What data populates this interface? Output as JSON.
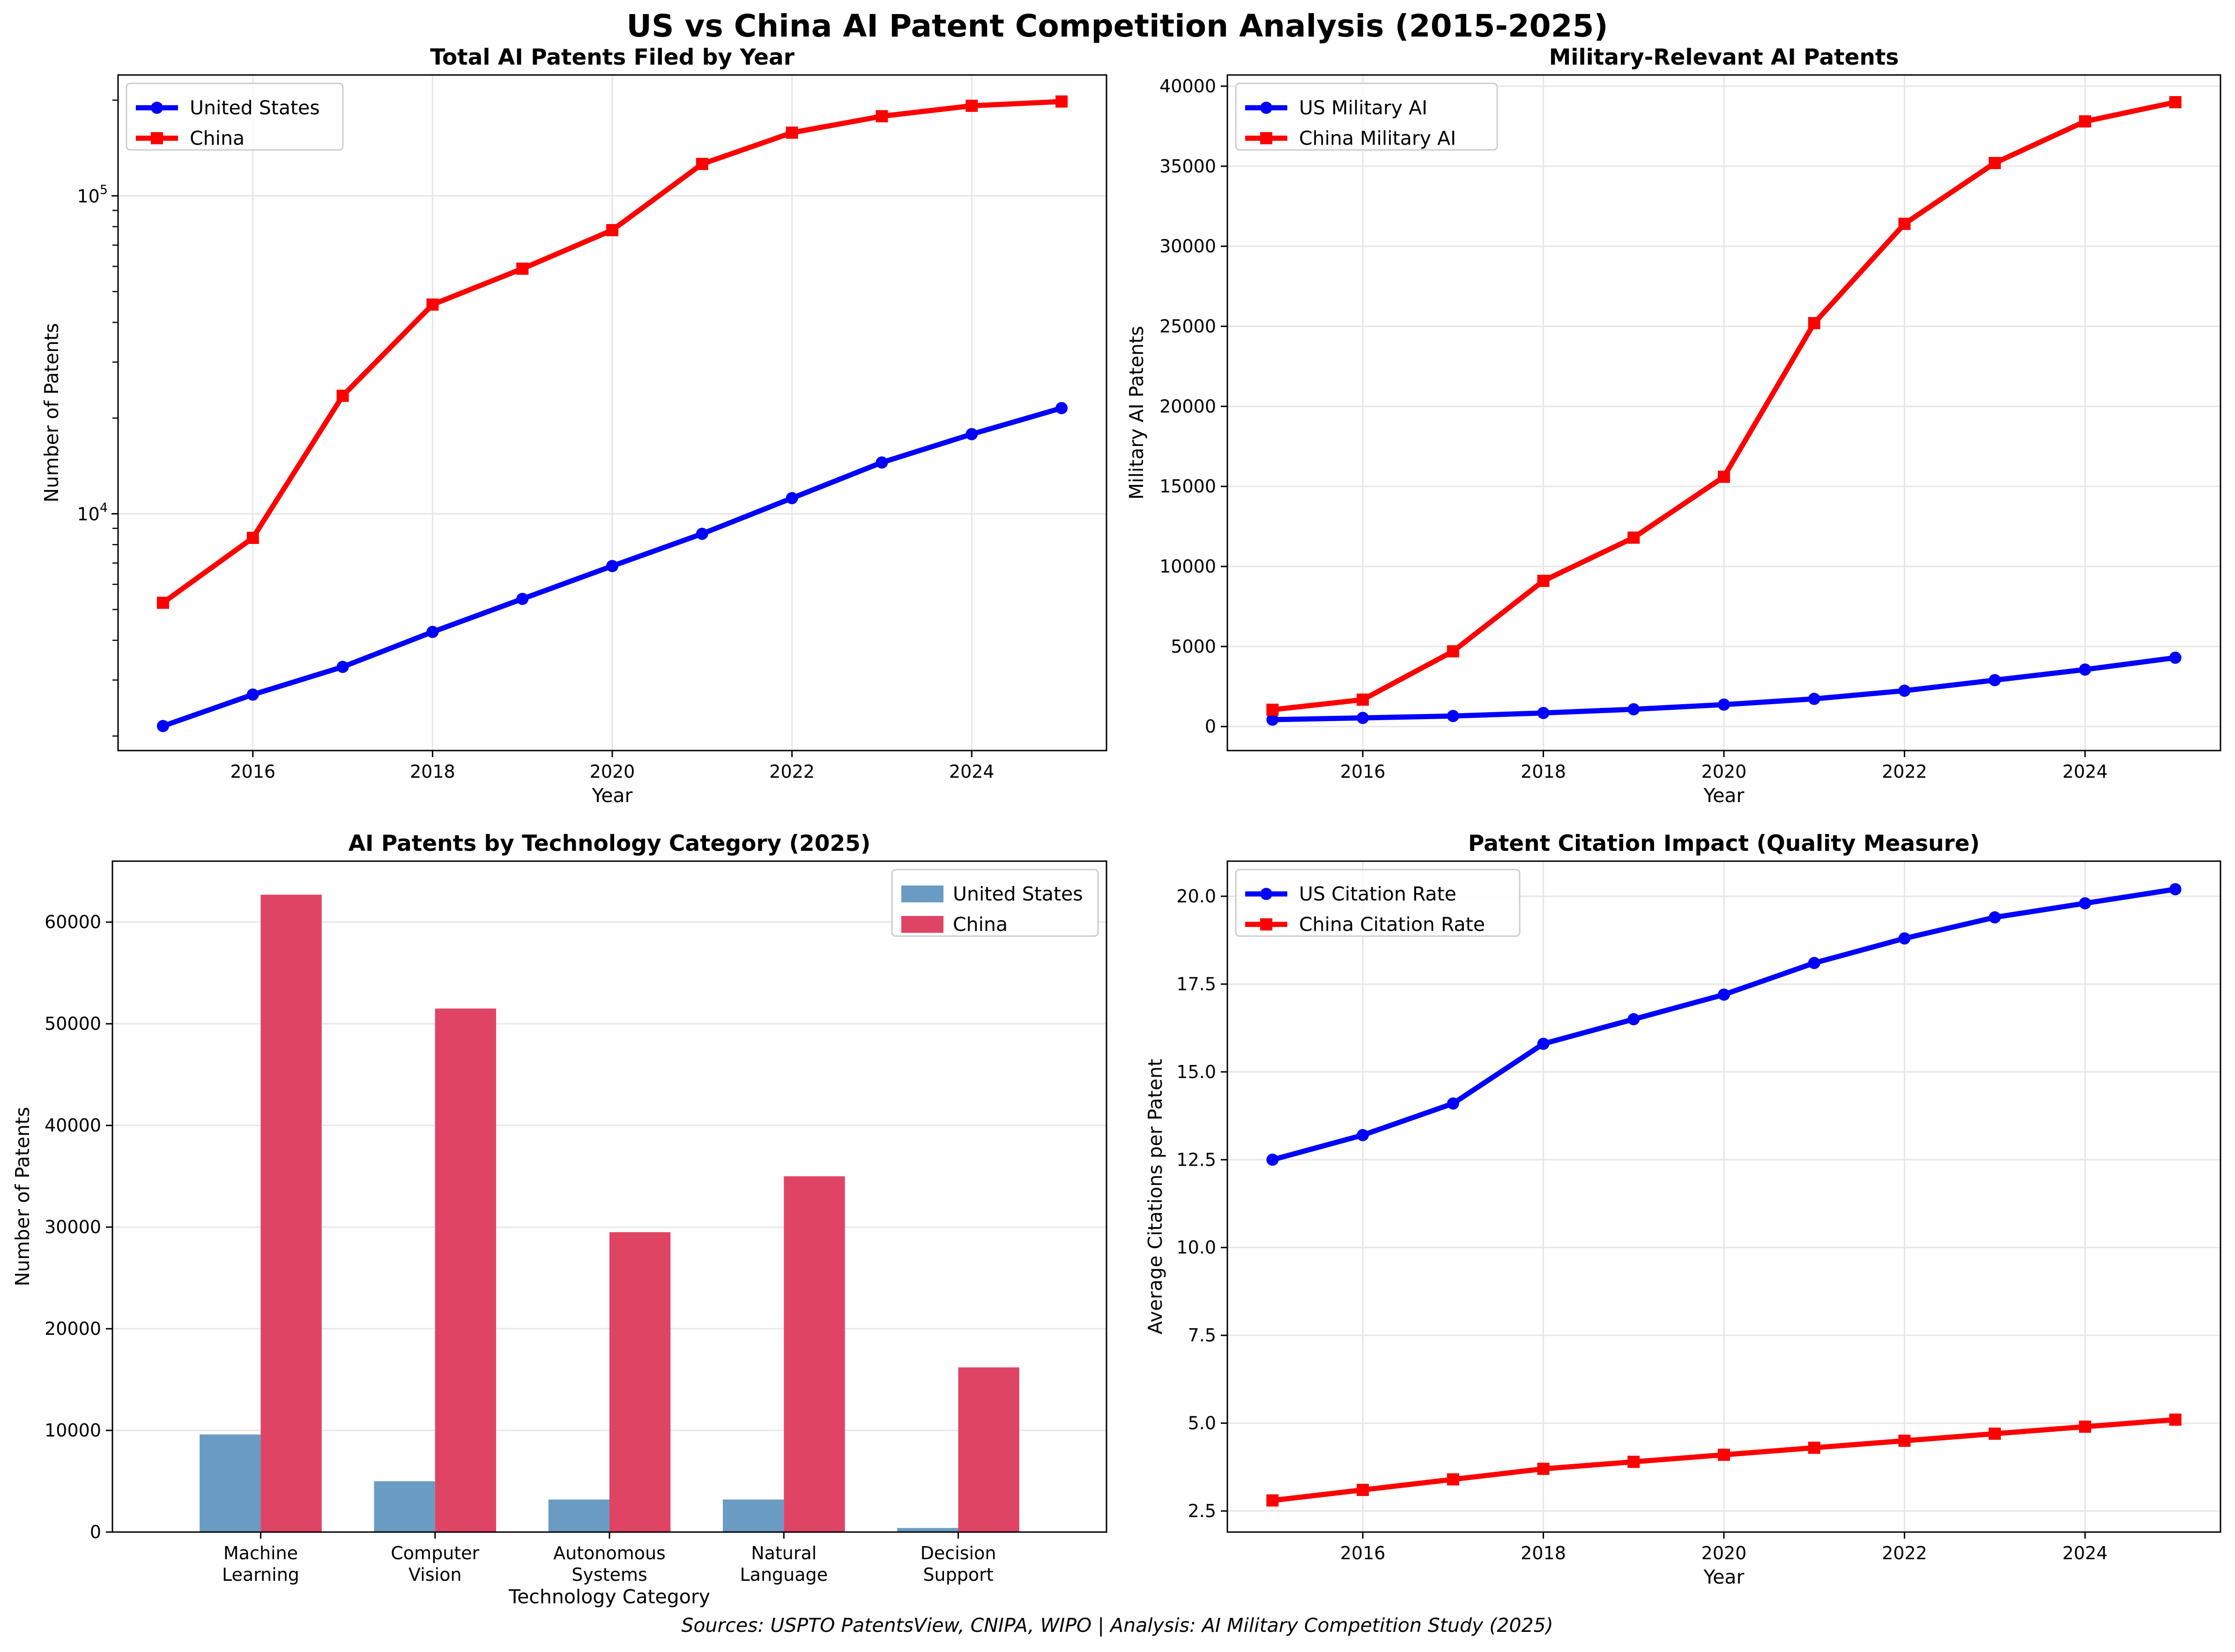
{
  "figure": {
    "title": "US vs China AI Patent Competition Analysis (2015-2025)",
    "source_note": "Sources: USPTO PatentsView, CNIPA, WIPO | Analysis: AI Military Competition Study (2025)"
  },
  "colors": {
    "us_line": "#0000ff",
    "china_line": "#ff0000",
    "us_bar": "#6a9bc3",
    "china_bar": "#e04464",
    "grid": "#e6e6e6"
  },
  "chart_data": [
    {
      "type": "line",
      "title": "Total AI Patents Filed by Year",
      "xlabel": "Year",
      "ylabel": "Number of Patents",
      "yscale": "log",
      "xlim": [
        2014.5,
        2025.5
      ],
      "ylim": [
        1800,
        240000
      ],
      "xticks": [
        2016,
        2018,
        2020,
        2022,
        2024
      ],
      "yticks": [
        {
          "value": 10000,
          "base": "10",
          "exp": "4"
        },
        {
          "value": 100000,
          "base": "10",
          "exp": "5"
        }
      ],
      "x": [
        2015,
        2016,
        2017,
        2018,
        2019,
        2020,
        2021,
        2022,
        2023,
        2024,
        2025
      ],
      "series": [
        {
          "name": "United States",
          "marker": "circle",
          "values": [
            2150,
            2700,
            3300,
            4250,
            5400,
            6850,
            8650,
            11200,
            14500,
            17800,
            21500
          ]
        },
        {
          "name": "China",
          "marker": "square",
          "values": [
            5250,
            8400,
            23500,
            45500,
            59000,
            78000,
            126000,
            158000,
            178000,
            192000,
            198000
          ]
        }
      ],
      "grid": true,
      "legend": "upper-left"
    },
    {
      "type": "line",
      "title": "Military-Relevant AI Patents",
      "xlabel": "Year",
      "ylabel": "Military AI Patents",
      "xlim": [
        2014.5,
        2025.5
      ],
      "ylim": [
        -1500,
        40700
      ],
      "xticks": [
        2016,
        2018,
        2020,
        2022,
        2024
      ],
      "yticks": [
        0,
        5000,
        10000,
        15000,
        20000,
        25000,
        30000,
        35000,
        40000
      ],
      "x": [
        2015,
        2016,
        2017,
        2018,
        2019,
        2020,
        2021,
        2022,
        2023,
        2024,
        2025
      ],
      "series": [
        {
          "name": "US Military AI",
          "marker": "circle",
          "values": [
            430,
            540,
            660,
            850,
            1080,
            1370,
            1730,
            2240,
            2900,
            3560,
            4300
          ]
        },
        {
          "name": "China Military AI",
          "marker": "square",
          "values": [
            1050,
            1680,
            4700,
            9100,
            11800,
            15600,
            25200,
            31400,
            35200,
            37800,
            39000
          ]
        }
      ],
      "grid": true,
      "legend": "upper-left"
    },
    {
      "type": "bar",
      "title": "AI Patents by Technology Category (2025)",
      "xlabel": "Technology Category",
      "ylabel": "Number of Patents",
      "ylim": [
        0,
        66000
      ],
      "yticks": [
        0,
        10000,
        20000,
        30000,
        40000,
        50000,
        60000
      ],
      "categories": [
        [
          "Machine",
          "Learning"
        ],
        [
          "Computer",
          "Vision"
        ],
        [
          "Autonomous",
          "Systems"
        ],
        [
          "Natural",
          "Language"
        ],
        [
          "Decision",
          "Support"
        ]
      ],
      "series": [
        {
          "name": "United States",
          "values": [
            9600,
            5000,
            3200,
            3200,
            400
          ]
        },
        {
          "name": "China",
          "values": [
            62700,
            51500,
            29500,
            35000,
            16200
          ]
        }
      ],
      "grid": true,
      "legend": "upper-right"
    },
    {
      "type": "line",
      "title": "Patent Citation Impact (Quality Measure)",
      "xlabel": "Year",
      "ylabel": "Average Citations per Patent",
      "xlim": [
        2014.5,
        2025.5
      ],
      "ylim": [
        1.9,
        21.0
      ],
      "xticks": [
        2016,
        2018,
        2020,
        2022,
        2024
      ],
      "yticks": [
        "2.5",
        "5.0",
        "7.5",
        "10.0",
        "12.5",
        "15.0",
        "17.5",
        "20.0"
      ],
      "x": [
        2015,
        2016,
        2017,
        2018,
        2019,
        2020,
        2021,
        2022,
        2023,
        2024,
        2025
      ],
      "series": [
        {
          "name": "US Citation Rate",
          "marker": "circle",
          "values": [
            12.5,
            13.2,
            14.1,
            15.8,
            16.5,
            17.2,
            18.1,
            18.8,
            19.4,
            19.8,
            20.2
          ]
        },
        {
          "name": "China Citation Rate",
          "marker": "square",
          "values": [
            2.8,
            3.1,
            3.4,
            3.7,
            3.9,
            4.1,
            4.3,
            4.5,
            4.7,
            4.9,
            5.1
          ]
        }
      ],
      "grid": true,
      "legend": "upper-left"
    }
  ]
}
